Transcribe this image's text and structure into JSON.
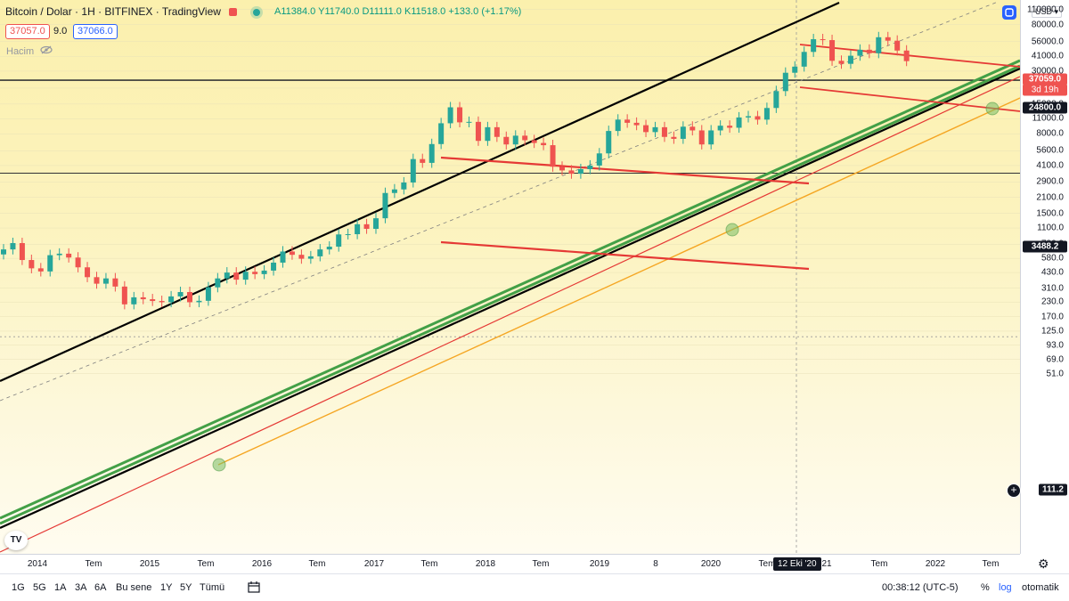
{
  "header": {
    "symbol": "Bitcoin / Dolar",
    "interval": "1H",
    "exchange": "BITFINEX",
    "platform": "TradingView",
    "ohlc_text": "A11384.0 Y11740.0 D11111.0 K11518.0 +133.0 (+1.17%)",
    "bid": "37057.0",
    "spread": "9.0",
    "ask": "37066.0",
    "volume_label": "Hacim"
  },
  "price_scale": {
    "currency": "USD",
    "ticks": [
      "110000.0",
      "80000.0",
      "56000.0",
      "41000.0",
      "30000.0",
      "21000.0",
      "15000.0",
      "11000.0",
      "8000.0",
      "5600.0",
      "4100.0",
      "2900.0",
      "2100.0",
      "1500.0",
      "1100.0",
      "780.0",
      "580.0",
      "430.0",
      "310.0",
      "230.0",
      "170.0",
      "125.0",
      "93.0",
      "69.0",
      "51.0"
    ],
    "current_price": "37059.0",
    "countdown": "3d 19h",
    "level_high": "24800.0",
    "level_low": "3488.2",
    "crosshair_price": "111.2"
  },
  "time_axis": {
    "labels": [
      "2014",
      "Tem",
      "2015",
      "Tem",
      "2016",
      "Tem",
      "2017",
      "Tem",
      "2018",
      "Tem",
      "2019",
      "8",
      "2020",
      "Tem",
      "21",
      "Tem",
      "2022",
      "Tem"
    ],
    "crosshair_date": "12 Eki '20"
  },
  "toolbar": {
    "ranges": [
      "1G",
      "5G",
      "1A",
      "3A",
      "6A",
      "Bu sene",
      "1Y",
      "5Y",
      "Tümü"
    ],
    "clock": "00:38:12 (UTC-5)",
    "percent": "%",
    "log": "log",
    "auto": "otomatik"
  },
  "colors": {
    "up": "#26a69a",
    "down": "#ef5350",
    "trend_black": "#000000",
    "trend_green": "#43a047",
    "trend_red": "#e53935",
    "trend_orange": "#f5a623",
    "level_line": "#131722",
    "current_label": "#ef5350"
  },
  "chart_data": {
    "type": "candlestick",
    "scale": "log",
    "x": [
      "2013-12",
      "2014-01",
      "2014-02",
      "2014-03",
      "2014-04",
      "2014-05",
      "2014-06",
      "2014-07",
      "2014-08",
      "2014-09",
      "2014-10",
      "2014-11",
      "2014-12",
      "2015-01",
      "2015-02",
      "2015-03",
      "2015-04",
      "2015-05",
      "2015-06",
      "2015-07",
      "2015-08",
      "2015-09",
      "2015-10",
      "2015-11",
      "2015-12",
      "2016-01",
      "2016-02",
      "2016-03",
      "2016-04",
      "2016-05",
      "2016-06",
      "2016-07",
      "2016-08",
      "2016-09",
      "2016-10",
      "2016-11",
      "2016-12",
      "2017-01",
      "2017-02",
      "2017-03",
      "2017-04",
      "2017-05",
      "2017-06",
      "2017-07",
      "2017-08",
      "2017-09",
      "2017-10",
      "2017-11",
      "2017-12",
      "2018-01",
      "2018-02",
      "2018-03",
      "2018-04",
      "2018-05",
      "2018-06",
      "2018-07",
      "2018-08",
      "2018-09",
      "2018-10",
      "2018-11",
      "2018-12",
      "2019-01",
      "2019-02",
      "2019-03",
      "2019-04",
      "2019-05",
      "2019-06",
      "2019-07",
      "2019-08",
      "2019-09",
      "2019-10",
      "2019-11",
      "2019-12",
      "2020-01",
      "2020-02",
      "2020-03",
      "2020-04",
      "2020-05",
      "2020-06",
      "2020-07",
      "2020-08",
      "2020-09",
      "2020-10",
      "2020-11",
      "2020-12",
      "2021-01",
      "2021-02",
      "2021-03",
      "2021-04",
      "2021-05",
      "2021-06",
      "2021-07",
      "2021-08",
      "2021-09",
      "2021-10",
      "2021-11",
      "2021-12",
      "2022-01"
    ],
    "close": [
      700,
      800,
      560,
      470,
      440,
      620,
      640,
      590,
      480,
      390,
      340,
      380,
      320,
      220,
      255,
      245,
      236,
      230,
      260,
      285,
      230,
      237,
      315,
      380,
      430,
      370,
      437,
      416,
      448,
      530,
      670,
      625,
      575,
      605,
      700,
      742,
      960,
      965,
      1190,
      1080,
      1350,
      2300,
      2480,
      2870,
      4700,
      4340,
      6450,
      10000,
      14000,
      10200,
      10300,
      6900,
      9200,
      7500,
      6400,
      7700,
      7000,
      6600,
      6300,
      4000,
      3700,
      3450,
      3800,
      4100,
      5300,
      8500,
      10800,
      10100,
      9600,
      8300,
      9200,
      7500,
      7200,
      9300,
      8600,
      6400,
      8600,
      9500,
      9100,
      11300,
      11600,
      10800,
      13800,
      19700,
      29000,
      33000,
      45000,
      58800,
      57700,
      37300,
      35000,
      41500,
      47100,
      43800,
      61300,
      57000,
      46300,
      37059
    ],
    "high_points": [
      1150,
      19500,
      64800,
      69000
    ],
    "low_points": [
      111.2,
      3200,
      3850,
      29300
    ],
    "horizontal_levels": [
      24800,
      3488.2,
      111.2
    ],
    "ylim": [
      51,
      110000
    ]
  }
}
